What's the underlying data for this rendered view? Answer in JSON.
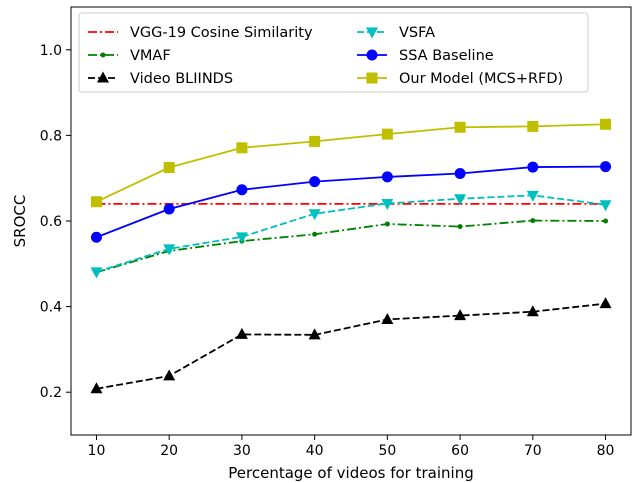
{
  "chart_data": {
    "type": "line",
    "xlabel": "Percentage of videos for training",
    "ylabel": "SROCC",
    "xlim": [
      6.5,
      83.5
    ],
    "ylim": [
      0.1,
      1.1
    ],
    "xticks": [
      10,
      20,
      30,
      40,
      50,
      60,
      70,
      80
    ],
    "yticks": [
      0.2,
      0.4,
      0.6,
      0.8,
      1.0
    ],
    "ytick_labels": [
      "0.2",
      "0.4",
      "0.6",
      "0.8",
      "1.0"
    ],
    "grid": false,
    "legend_position": "top",
    "x": [
      10,
      20,
      30,
      40,
      50,
      60,
      70,
      80
    ],
    "series": [
      {
        "name": "VGG-19 Cosine Similarity",
        "color": "#ff0000",
        "dash": "dashdot",
        "marker": "none",
        "values": [
          0.64,
          0.64,
          0.64,
          0.64,
          0.64,
          0.64,
          0.64,
          0.64
        ]
      },
      {
        "name": "VMAF",
        "color": "#008000",
        "dash": "dashdot",
        "marker": "smalldot",
        "values": [
          0.48,
          0.53,
          0.553,
          0.569,
          0.593,
          0.587,
          0.601,
          0.6
        ]
      },
      {
        "name": "Video BLIINDS",
        "color": "#000000",
        "dash": "dashed",
        "marker": "triangle-up",
        "values": [
          0.208,
          0.238,
          0.335,
          0.334,
          0.37,
          0.379,
          0.388,
          0.407
        ]
      },
      {
        "name": "VSFA",
        "color": "#00bfbf",
        "dash": "dashed",
        "marker": "triangle-down",
        "values": [
          0.481,
          0.535,
          0.563,
          0.617,
          0.641,
          0.652,
          0.66,
          0.638
        ]
      },
      {
        "name": "SSA Baseline",
        "color": "#0000ff",
        "dash": "solid",
        "marker": "circle",
        "values": [
          0.562,
          0.628,
          0.673,
          0.692,
          0.703,
          0.711,
          0.726,
          0.727
        ]
      },
      {
        "name": "Our Model (MCS+RFD)",
        "color": "#bfbf00",
        "dash": "solid",
        "marker": "square",
        "values": [
          0.645,
          0.725,
          0.771,
          0.786,
          0.803,
          0.819,
          0.821,
          0.826
        ]
      }
    ]
  }
}
